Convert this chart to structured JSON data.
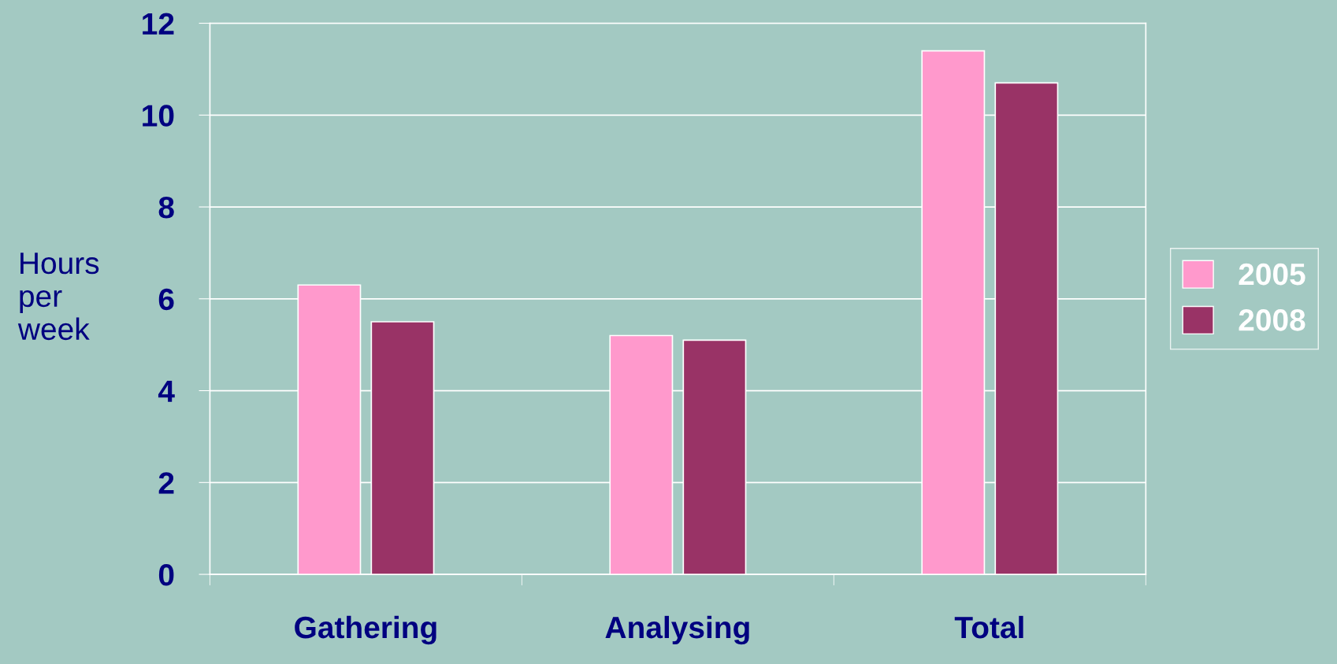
{
  "chart_data": {
    "type": "bar",
    "ylabel": "Hours\nper\nweek",
    "categories": [
      "Gathering",
      "Analysing",
      "Total"
    ],
    "series": [
      {
        "name": "2005",
        "color": "#ff99cc",
        "values": [
          6.3,
          5.2,
          11.4
        ]
      },
      {
        "name": "2008",
        "color": "#993366",
        "values": [
          5.5,
          5.1,
          10.7
        ]
      }
    ],
    "ylim": [
      0,
      12
    ],
    "yticks": [
      0,
      2,
      4,
      6,
      8,
      10,
      12
    ],
    "grid": "y",
    "legend": "right"
  }
}
